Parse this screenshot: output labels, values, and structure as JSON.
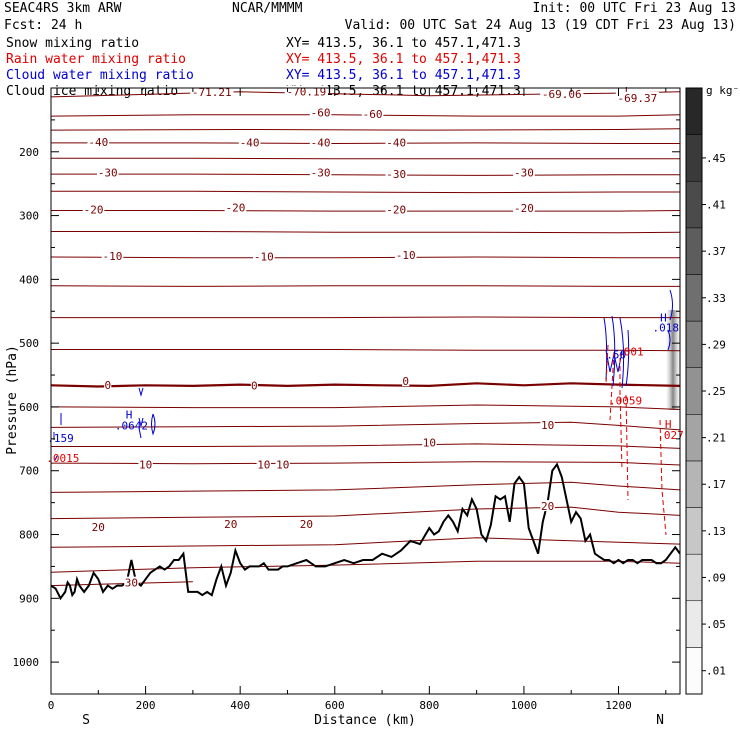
{
  "header": {
    "model": "SEAC4RS  3km ARW",
    "org": "NCAR/MMMM",
    "init": "Init: 00 UTC Fri 23 Aug 13",
    "fcst": "Fcst:   24 h",
    "valid": "Valid: 00 UTC Sat 24 Aug 13 (19 CDT Fri 23 Aug 13)",
    "fields": [
      {
        "name": "Snow mixing ratio",
        "xy": "XY= 413.5, 36.1 to 457.1,471.3",
        "color": "#000000"
      },
      {
        "name": "Rain water mixing ratio",
        "xy": "XY= 413.5, 36.1 to 457.1,471.3",
        "color": "#e00000"
      },
      {
        "name": "Cloud water mixing ratio",
        "xy": "XY= 413.5, 36.1 to 457.1,471.3",
        "color": "#0000d0"
      },
      {
        "name": "Cloud ice mixing ratio",
        "xy": "XY= 413.5, 36.1 to 457.1,471.3",
        "color": "#000000"
      }
    ]
  },
  "colors": {
    "isotherm": "#7a0000",
    "terrain": "#000000",
    "rain": "#e00000",
    "cloud": "#0000d0",
    "frame": "#000000"
  },
  "chart_data": {
    "type": "line",
    "xlabel": "Distance (km)",
    "ylabel": "Pressure (hPa)",
    "xlim": [
      0,
      1330
    ],
    "ylim": [
      1050,
      100
    ],
    "x_ticks": [
      0,
      200,
      400,
      600,
      800,
      1000,
      1200
    ],
    "x_tick_labels": [
      "0",
      "200",
      "400",
      "600",
      "800",
      "1000",
      "1200"
    ],
    "y_ticks": [
      200,
      300,
      400,
      500,
      600,
      700,
      800,
      900,
      1000
    ],
    "y_tick_labels": [
      "200",
      "300",
      "400",
      "500",
      "600",
      "700",
      "800",
      "900",
      "1000"
    ],
    "endpoints": {
      "left": "S",
      "right": "N"
    },
    "colorbar": {
      "unit": "g kg⁻¹",
      "levels": [
        0.01,
        0.05,
        0.09,
        0.13,
        0.17,
        0.21,
        0.25,
        0.29,
        0.33,
        0.37,
        0.41,
        0.45
      ],
      "labels": [
        ".01",
        ".05",
        ".09",
        ".13",
        ".17",
        ".21",
        ".25",
        ".29",
        ".33",
        ".37",
        ".41",
        ".45"
      ],
      "range": [
        -0.01,
        0.51
      ]
    },
    "isotherms": [
      {
        "label": "-70",
        "p": [
          [
            0,
            114
          ],
          [
            200,
            110
          ],
          [
            400,
            106
          ],
          [
            600,
            109
          ],
          [
            800,
            112
          ],
          [
            1000,
            110
          ],
          [
            1200,
            108
          ],
          [
            1330,
            106
          ]
        ]
      },
      {
        "label": "-60",
        "p": [
          [
            0,
            144
          ],
          [
            300,
            142
          ],
          [
            600,
            142
          ],
          [
            900,
            144
          ],
          [
            1200,
            144
          ],
          [
            1330,
            142
          ]
        ]
      },
      {
        "label": "-50",
        "p": [
          [
            0,
            166
          ],
          [
            400,
            165
          ],
          [
            800,
            166
          ],
          [
            1200,
            165
          ],
          [
            1330,
            164
          ]
        ]
      },
      {
        "label": "-40",
        "p": [
          [
            0,
            186
          ],
          [
            300,
            186
          ],
          [
            600,
            187
          ],
          [
            900,
            186
          ],
          [
            1200,
            187
          ],
          [
            1330,
            187
          ]
        ]
      },
      {
        "label": "-40",
        "p": [
          [
            0,
            210
          ],
          [
            300,
            210
          ],
          [
            600,
            211
          ],
          [
            900,
            211
          ],
          [
            1200,
            211
          ],
          [
            1330,
            211
          ]
        ]
      },
      {
        "label": "-30",
        "p": [
          [
            0,
            235
          ],
          [
            300,
            235
          ],
          [
            600,
            236
          ],
          [
            900,
            237
          ],
          [
            1200,
            236
          ],
          [
            1330,
            236
          ]
        ]
      },
      {
        "label": "-30",
        "p": [
          [
            0,
            262
          ],
          [
            300,
            262
          ],
          [
            600,
            263
          ],
          [
            900,
            264
          ],
          [
            1200,
            263
          ],
          [
            1330,
            263
          ]
        ]
      },
      {
        "label": "-20",
        "p": [
          [
            0,
            292
          ],
          [
            300,
            292
          ],
          [
            600,
            293
          ],
          [
            900,
            293
          ],
          [
            1200,
            293
          ],
          [
            1330,
            292
          ]
        ]
      },
      {
        "label": "-20",
        "p": [
          [
            0,
            325
          ],
          [
            300,
            325
          ],
          [
            600,
            326
          ],
          [
            900,
            326
          ],
          [
            1200,
            327
          ],
          [
            1330,
            326
          ]
        ]
      },
      {
        "label": "-10",
        "p": [
          [
            0,
            365
          ],
          [
            300,
            366
          ],
          [
            600,
            366
          ],
          [
            900,
            365
          ],
          [
            1200,
            366
          ],
          [
            1330,
            366
          ]
        ]
      },
      {
        "label": "-10",
        "p": [
          [
            0,
            410
          ],
          [
            300,
            411
          ],
          [
            600,
            410
          ],
          [
            900,
            410
          ],
          [
            1200,
            411
          ],
          [
            1330,
            411
          ]
        ]
      },
      {
        "label": "-10",
        "p": [
          [
            0,
            460
          ],
          [
            300,
            460
          ],
          [
            600,
            460
          ],
          [
            900,
            459
          ],
          [
            1200,
            460
          ],
          [
            1330,
            460
          ]
        ]
      },
      {
        "label": "",
        "p": [
          [
            0,
            510
          ],
          [
            300,
            510
          ],
          [
            600,
            510
          ],
          [
            900,
            511
          ],
          [
            1200,
            511
          ],
          [
            1330,
            512
          ]
        ]
      },
      {
        "label": "0",
        "bold": true,
        "p": [
          [
            0,
            566
          ],
          [
            100,
            568
          ],
          [
            200,
            566
          ],
          [
            300,
            567
          ],
          [
            400,
            565
          ],
          [
            500,
            567
          ],
          [
            600,
            565
          ],
          [
            700,
            566
          ],
          [
            800,
            567
          ],
          [
            900,
            563
          ],
          [
            1000,
            566
          ],
          [
            1100,
            563
          ],
          [
            1200,
            565
          ],
          [
            1330,
            567
          ]
        ]
      },
      {
        "label": "",
        "p": [
          [
            0,
            600
          ],
          [
            300,
            601
          ],
          [
            600,
            601
          ],
          [
            900,
            597
          ],
          [
            1200,
            600
          ],
          [
            1330,
            604
          ]
        ]
      },
      {
        "label": "",
        "p": [
          [
            0,
            632
          ],
          [
            300,
            631
          ],
          [
            600,
            630
          ],
          [
            900,
            626
          ],
          [
            1100,
            624
          ],
          [
            1200,
            629
          ],
          [
            1330,
            636
          ]
        ]
      },
      {
        "label": "10",
        "p": [
          [
            0,
            662
          ],
          [
            300,
            662
          ],
          [
            600,
            661
          ],
          [
            900,
            658
          ],
          [
            1200,
            661
          ],
          [
            1330,
            665
          ]
        ]
      },
      {
        "label": "10",
        "p": [
          [
            0,
            688
          ],
          [
            300,
            689
          ],
          [
            600,
            688
          ],
          [
            900,
            686
          ],
          [
            1200,
            687
          ],
          [
            1330,
            691
          ]
        ]
      },
      {
        "label": "",
        "p": [
          [
            0,
            734
          ],
          [
            300,
            732
          ],
          [
            600,
            730
          ],
          [
            900,
            722
          ],
          [
            1100,
            718
          ],
          [
            1200,
            724
          ],
          [
            1330,
            730
          ]
        ]
      },
      {
        "label": "20",
        "p": [
          [
            0,
            775
          ],
          [
            300,
            773
          ],
          [
            600,
            771
          ],
          [
            900,
            760
          ],
          [
            1100,
            757
          ],
          [
            1200,
            765
          ],
          [
            1330,
            770
          ]
        ]
      },
      {
        "label": "20",
        "p": [
          [
            0,
            820
          ],
          [
            300,
            818
          ],
          [
            600,
            816
          ],
          [
            900,
            805
          ],
          [
            1200,
            812
          ],
          [
            1330,
            815
          ]
        ]
      },
      {
        "label": "",
        "p": [
          [
            0,
            859
          ],
          [
            300,
            852
          ],
          [
            600,
            848
          ],
          [
            900,
            842
          ],
          [
            1200,
            842
          ],
          [
            1330,
            845
          ]
        ]
      },
      {
        "label": "30",
        "p": [
          [
            0,
            880
          ],
          [
            100,
            878
          ],
          [
            200,
            876
          ],
          [
            300,
            874
          ]
        ]
      }
    ],
    "contour_labels": [
      {
        "text": "-71.21",
        "x": 340,
        "p": 108
      },
      {
        "text": "-70.19",
        "x": 540,
        "p": 107
      },
      {
        "text": "-69.06",
        "x": 1080,
        "p": 111
      },
      {
        "text": "L",
        "x": 1220,
        "p": 106
      },
      {
        "text": "-69.37",
        "x": 1240,
        "p": 117
      },
      {
        "text": "-60",
        "x": 570,
        "p": 140
      },
      {
        "text": "-60",
        "x": 680,
        "p": 142
      },
      {
        "text": "-40",
        "x": 100,
        "p": 186
      },
      {
        "text": "-40",
        "x": 420,
        "p": 187
      },
      {
        "text": "-40",
        "x": 570,
        "p": 187
      },
      {
        "text": "-40",
        "x": 730,
        "p": 187
      },
      {
        "text": "-30",
        "x": 120,
        "p": 234
      },
      {
        "text": "-30",
        "x": 570,
        "p": 234
      },
      {
        "text": "-30",
        "x": 730,
        "p": 236
      },
      {
        "text": "-30",
        "x": 1000,
        "p": 234
      },
      {
        "text": "-20",
        "x": 90,
        "p": 292
      },
      {
        "text": "-20",
        "x": 390,
        "p": 289
      },
      {
        "text": "-20",
        "x": 730,
        "p": 292
      },
      {
        "text": "-20",
        "x": 1000,
        "p": 290
      },
      {
        "text": "-10",
        "x": 130,
        "p": 365
      },
      {
        "text": "-10",
        "x": 450,
        "p": 366
      },
      {
        "text": "-10",
        "x": 750,
        "p": 363
      },
      {
        "text": "0",
        "x": 120,
        "p": 567
      },
      {
        "text": "0",
        "x": 430,
        "p": 568
      },
      {
        "text": "0",
        "x": 750,
        "p": 561
      },
      {
        "text": "10",
        "x": 800,
        "p": 657
      },
      {
        "text": "10",
        "x": 1050,
        "p": 630
      },
      {
        "text": "10",
        "x": 200,
        "p": 692
      },
      {
        "text": "10",
        "x": 450,
        "p": 692
      },
      {
        "text": "10",
        "x": 490,
        "p": 692
      },
      {
        "text": "20",
        "x": 1050,
        "p": 757
      },
      {
        "text": "20",
        "x": 100,
        "p": 790
      },
      {
        "text": "20",
        "x": 380,
        "p": 785
      },
      {
        "text": "20",
        "x": 540,
        "p": 785
      },
      {
        "text": "30",
        "x": 170,
        "p": 877
      }
    ],
    "terrain": {
      "x": [
        0,
        10,
        20,
        30,
        35,
        40,
        45,
        50,
        55,
        60,
        70,
        80,
        90,
        100,
        110,
        120,
        130,
        140,
        150,
        160,
        170,
        180,
        190,
        200,
        210,
        220,
        230,
        240,
        250,
        260,
        270,
        280,
        290,
        300,
        310,
        320,
        330,
        340,
        350,
        360,
        370,
        380,
        390,
        400,
        410,
        420,
        430,
        440,
        450,
        460,
        470,
        480,
        490,
        500,
        520,
        540,
        560,
        580,
        600,
        620,
        640,
        660,
        680,
        700,
        720,
        740,
        760,
        780,
        800,
        810,
        820,
        830,
        840,
        850,
        860,
        870,
        880,
        890,
        900,
        910,
        920,
        930,
        940,
        950,
        960,
        970,
        980,
        990,
        1000,
        1010,
        1020,
        1030,
        1040,
        1050,
        1060,
        1070,
        1080,
        1090,
        1100,
        1110,
        1120,
        1130,
        1140,
        1150,
        1160,
        1170,
        1180,
        1190,
        1200,
        1210,
        1220,
        1230,
        1240,
        1250,
        1260,
        1270,
        1280,
        1290,
        1300,
        1310,
        1320,
        1330
      ],
      "p": [
        880,
        885,
        900,
        890,
        875,
        880,
        895,
        890,
        870,
        880,
        890,
        880,
        860,
        870,
        890,
        880,
        885,
        880,
        880,
        875,
        840,
        875,
        880,
        870,
        860,
        855,
        850,
        855,
        850,
        840,
        840,
        830,
        890,
        890,
        890,
        895,
        890,
        895,
        870,
        850,
        880,
        860,
        825,
        845,
        855,
        850,
        850,
        850,
        845,
        855,
        855,
        855,
        850,
        850,
        845,
        840,
        850,
        850,
        845,
        840,
        845,
        840,
        840,
        830,
        835,
        825,
        810,
        815,
        790,
        800,
        795,
        780,
        770,
        780,
        795,
        760,
        770,
        745,
        760,
        800,
        810,
        785,
        740,
        745,
        740,
        780,
        720,
        710,
        720,
        790,
        810,
        830,
        780,
        750,
        700,
        690,
        710,
        745,
        780,
        765,
        775,
        810,
        800,
        830,
        835,
        840,
        840,
        845,
        840,
        845,
        840,
        840,
        845,
        840,
        840,
        840,
        845,
        845,
        840,
        830,
        820,
        830
      ]
    },
    "cloud_labels": [
      {
        "text": "H",
        "x": 165,
        "p": 618,
        "color": "cloud"
      },
      {
        "text": ".0642",
        "x": 170,
        "p": 635,
        "color": "cloud"
      },
      {
        "text": ".159",
        "x": 20,
        "p": 655,
        "color": "cloud"
      },
      {
        "text": ".0015",
        "x": 25,
        "p": 686,
        "color": "rain"
      },
      {
        "text": ".50",
        "x": 1195,
        "p": 524,
        "color": "cloud"
      },
      {
        "text": ".001",
        "x": 1225,
        "p": 519,
        "color": "rain"
      },
      {
        "text": "H",
        "x": 1295,
        "p": 466,
        "color": "cloud"
      },
      {
        "text": ".018",
        "x": 1300,
        "p": 482,
        "color": "cloud"
      },
      {
        "text": ".0059",
        "x": 1215,
        "p": 596,
        "color": "rain"
      },
      {
        "text": "H",
        "x": 1305,
        "p": 633,
        "color": "rain"
      },
      {
        "text": ".027",
        "x": 1310,
        "p": 650,
        "color": "rain"
      }
    ]
  }
}
